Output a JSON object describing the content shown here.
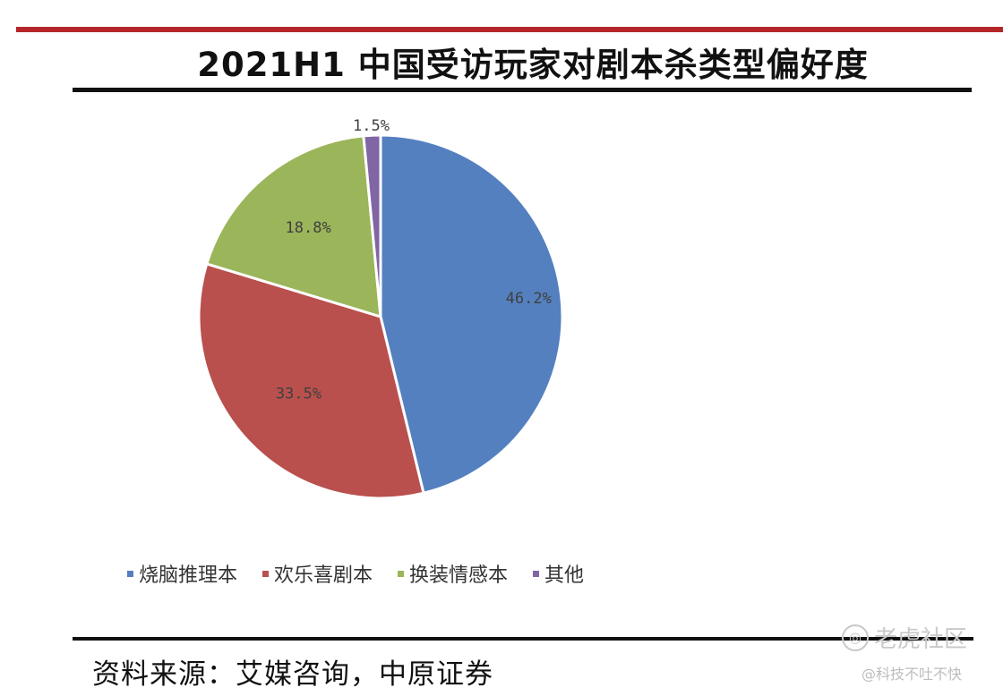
{
  "title": "2021H1 中国受访玩家对剧本杀类型偏好度",
  "source": "资料来源：艾媒咨询，中原证券",
  "watermark": {
    "text": "老虎社区",
    "handle": "@科技不吐不快"
  },
  "chart_data": {
    "type": "pie",
    "title": "2021H1 中国受访玩家对剧本杀类型偏好度",
    "categories": [
      "烧脑推理本",
      "欢乐喜剧本",
      "换装情感本",
      "其他"
    ],
    "values": [
      46.2,
      33.5,
      18.8,
      1.5
    ],
    "labels": [
      "46.2%",
      "33.5%",
      "18.8%",
      "1.5%"
    ],
    "colors": [
      "#5480bf",
      "#b9504d",
      "#9bb55a",
      "#8066a4"
    ],
    "start_angle_deg": 0,
    "direction": "clockwise",
    "legend_position": "bottom"
  }
}
